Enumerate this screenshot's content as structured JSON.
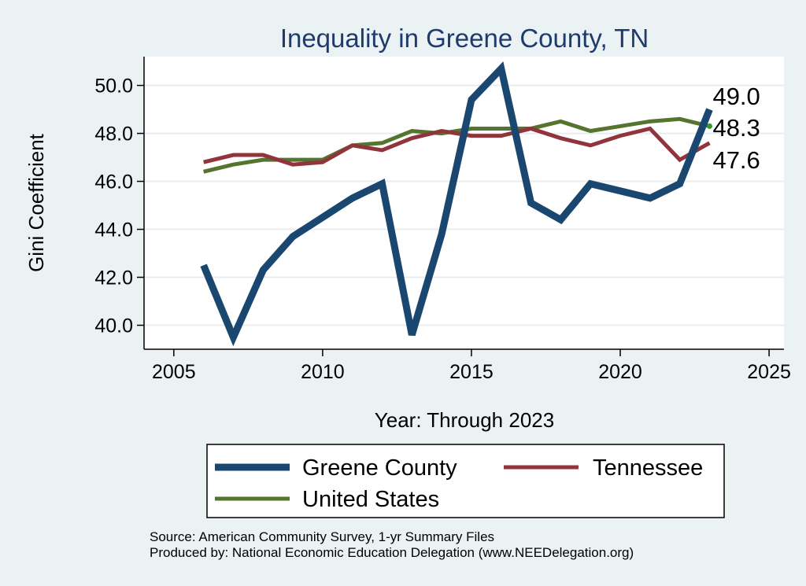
{
  "chart_data": {
    "type": "line",
    "title": "Inequality in Greene County, TN",
    "xlabel": "Year: Through 2023",
    "ylabel": "Gini Coefficient",
    "xlim": [
      2004,
      2025.5
    ],
    "ylim": [
      39,
      51.2
    ],
    "xticks": [
      "2005",
      "2010",
      "2015",
      "2020",
      "2025"
    ],
    "yticks": [
      "40.0",
      "42.0",
      "44.0",
      "46.0",
      "48.0",
      "50.0"
    ],
    "grid": true,
    "x": [
      2006,
      2007,
      2008,
      2009,
      2010,
      2011,
      2012,
      2013,
      2014,
      2015,
      2016,
      2017,
      2018,
      2019,
      2020,
      2021,
      2022,
      2023
    ],
    "series": [
      {
        "name": "Greene County",
        "color": "#1a476f",
        "values": [
          42.5,
          39.5,
          42.3,
          43.7,
          44.5,
          45.3,
          45.9,
          39.6,
          43.8,
          49.4,
          50.7,
          45.1,
          44.4,
          45.9,
          45.6,
          45.3,
          45.9,
          49.0
        ],
        "end_label": "49.0"
      },
      {
        "name": "Tennessee",
        "color": "#90353b",
        "values": [
          46.8,
          47.1,
          47.1,
          46.7,
          46.8,
          47.5,
          47.3,
          47.8,
          48.1,
          47.9,
          47.9,
          48.2,
          47.8,
          47.5,
          47.9,
          48.2,
          46.9,
          47.6
        ],
        "end_label": "47.6"
      },
      {
        "name": "United States",
        "color": "#55752f",
        "values": [
          46.4,
          46.7,
          46.9,
          46.9,
          46.9,
          47.5,
          47.6,
          48.1,
          48.0,
          48.2,
          48.2,
          48.2,
          48.5,
          48.1,
          48.3,
          48.5,
          48.6,
          48.3
        ],
        "end_label": "48.3"
      }
    ],
    "legend": [
      "Greene County",
      "Tennessee",
      "United States"
    ],
    "source_lines": [
      "Source: American Community Survey, 1-yr Summary Files",
      "Produced by: National Economic Education Delegation (www.NEEDelegation.org)"
    ]
  }
}
